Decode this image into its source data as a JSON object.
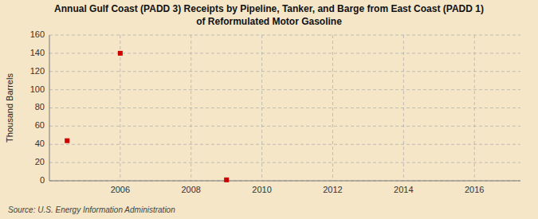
{
  "chart_data": {
    "type": "scatter",
    "title": "Annual Gulf Coast (PADD 3) Receipts by Pipeline, Tanker, and Barge from East Coast (PADD 1)\nof Reformulated Motor Gasoline",
    "ylabel": "Thousand Barrels",
    "source": "Source: U.S. Energy Information Administration",
    "x": [
      2004.5,
      2006,
      2009
    ],
    "values": [
      44,
      140,
      1
    ],
    "color": "#cc0000",
    "marker": "square",
    "xlim": [
      2004.0,
      2017.3
    ],
    "ylim": [
      0,
      160
    ],
    "xticks": [
      2006,
      2008,
      2010,
      2012,
      2014,
      2016
    ],
    "yticks": [
      0,
      20,
      40,
      60,
      80,
      100,
      120,
      140,
      160
    ],
    "grid": true
  }
}
